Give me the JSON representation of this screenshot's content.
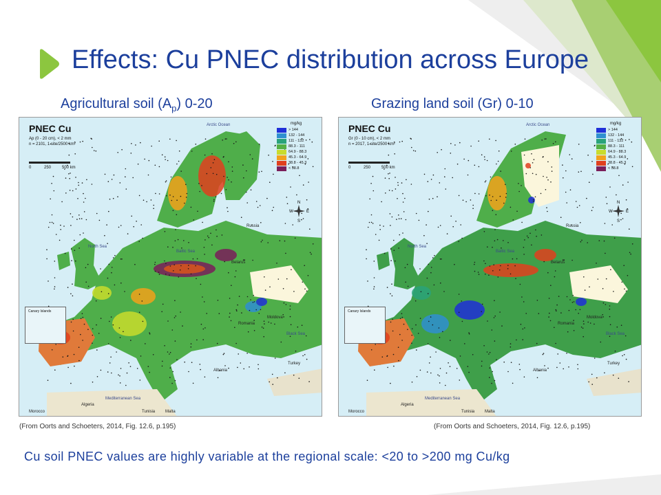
{
  "slide": {
    "title": "Effects: Cu PNEC distribution across Europe",
    "footer_note": "Cu soil PNEC values are highly variable at the regional scale: <20 to >200 mg Cu/kg",
    "accent_color": "#8cc63f",
    "title_color": "#1c3f9c",
    "arrow_icon": "green-chevron-arrow-icon"
  },
  "maps": [
    {
      "caption_prefix": "Agricultural soil (A",
      "caption_sub": "p",
      "caption_suffix": ") 0-20",
      "heading": "PNEC Cu",
      "subtitle_line1": "Ap (0 - 20 cm), < 2 mm",
      "subtitle_line2": "n = 2101, 1 site/2500 km²",
      "scale_labels": [
        "0",
        "250",
        "500 km"
      ],
      "source": "(From  Oorts and Schoeters, 2014, Fig. 12.6, p.195)"
    },
    {
      "caption": "Grazing land soil (Gr) 0-10",
      "heading": "PNEC Cu",
      "subtitle_line1": "Gr (0 - 10 cm), < 2 mm",
      "subtitle_line2": "n = 2017, 1 site/2500 km²",
      "scale_labels": [
        "0",
        "250",
        "500 km"
      ],
      "source": "(From  Oorts and Schoeters, 2014, Fig. 12.6, p.195)"
    }
  ],
  "legend": {
    "unit": "mg/kg",
    "classes": [
      {
        "label": "> 144",
        "color": "#1f2fd8"
      },
      {
        "label": "132 - 144",
        "color": "#2f8fd0"
      },
      {
        "label": "111 - 132",
        "color": "#2aa37a"
      },
      {
        "label": "88.3 - 111",
        "color": "#55b045"
      },
      {
        "label": "64.9 - 88.3",
        "color": "#c8dc2c"
      },
      {
        "label": "45.3 - 64.9",
        "color": "#f2a21b"
      },
      {
        "label": "38.8 - 45.3",
        "color": "#e0401e"
      },
      {
        "label": "< 38.8",
        "color": "#7a1e5a"
      }
    ]
  },
  "map_labels": {
    "arctic": "Arctic Ocean",
    "north_sea": "North Sea",
    "baltic": "Baltic Sea",
    "med": "Mediterranean Sea",
    "black_sea": "Black Sea",
    "canary": "Canary Islands",
    "russia": "Russia",
    "belarus": "Belarus",
    "romania": "Romania",
    "turkey": "Turkey",
    "algeria": "Algeria",
    "morocco": "Morocco",
    "tunisia": "Tunisia",
    "malta": "Malta",
    "moldova": "Moldova",
    "albania": "Albania",
    "compass": [
      "N",
      "E",
      "S",
      "W"
    ]
  }
}
